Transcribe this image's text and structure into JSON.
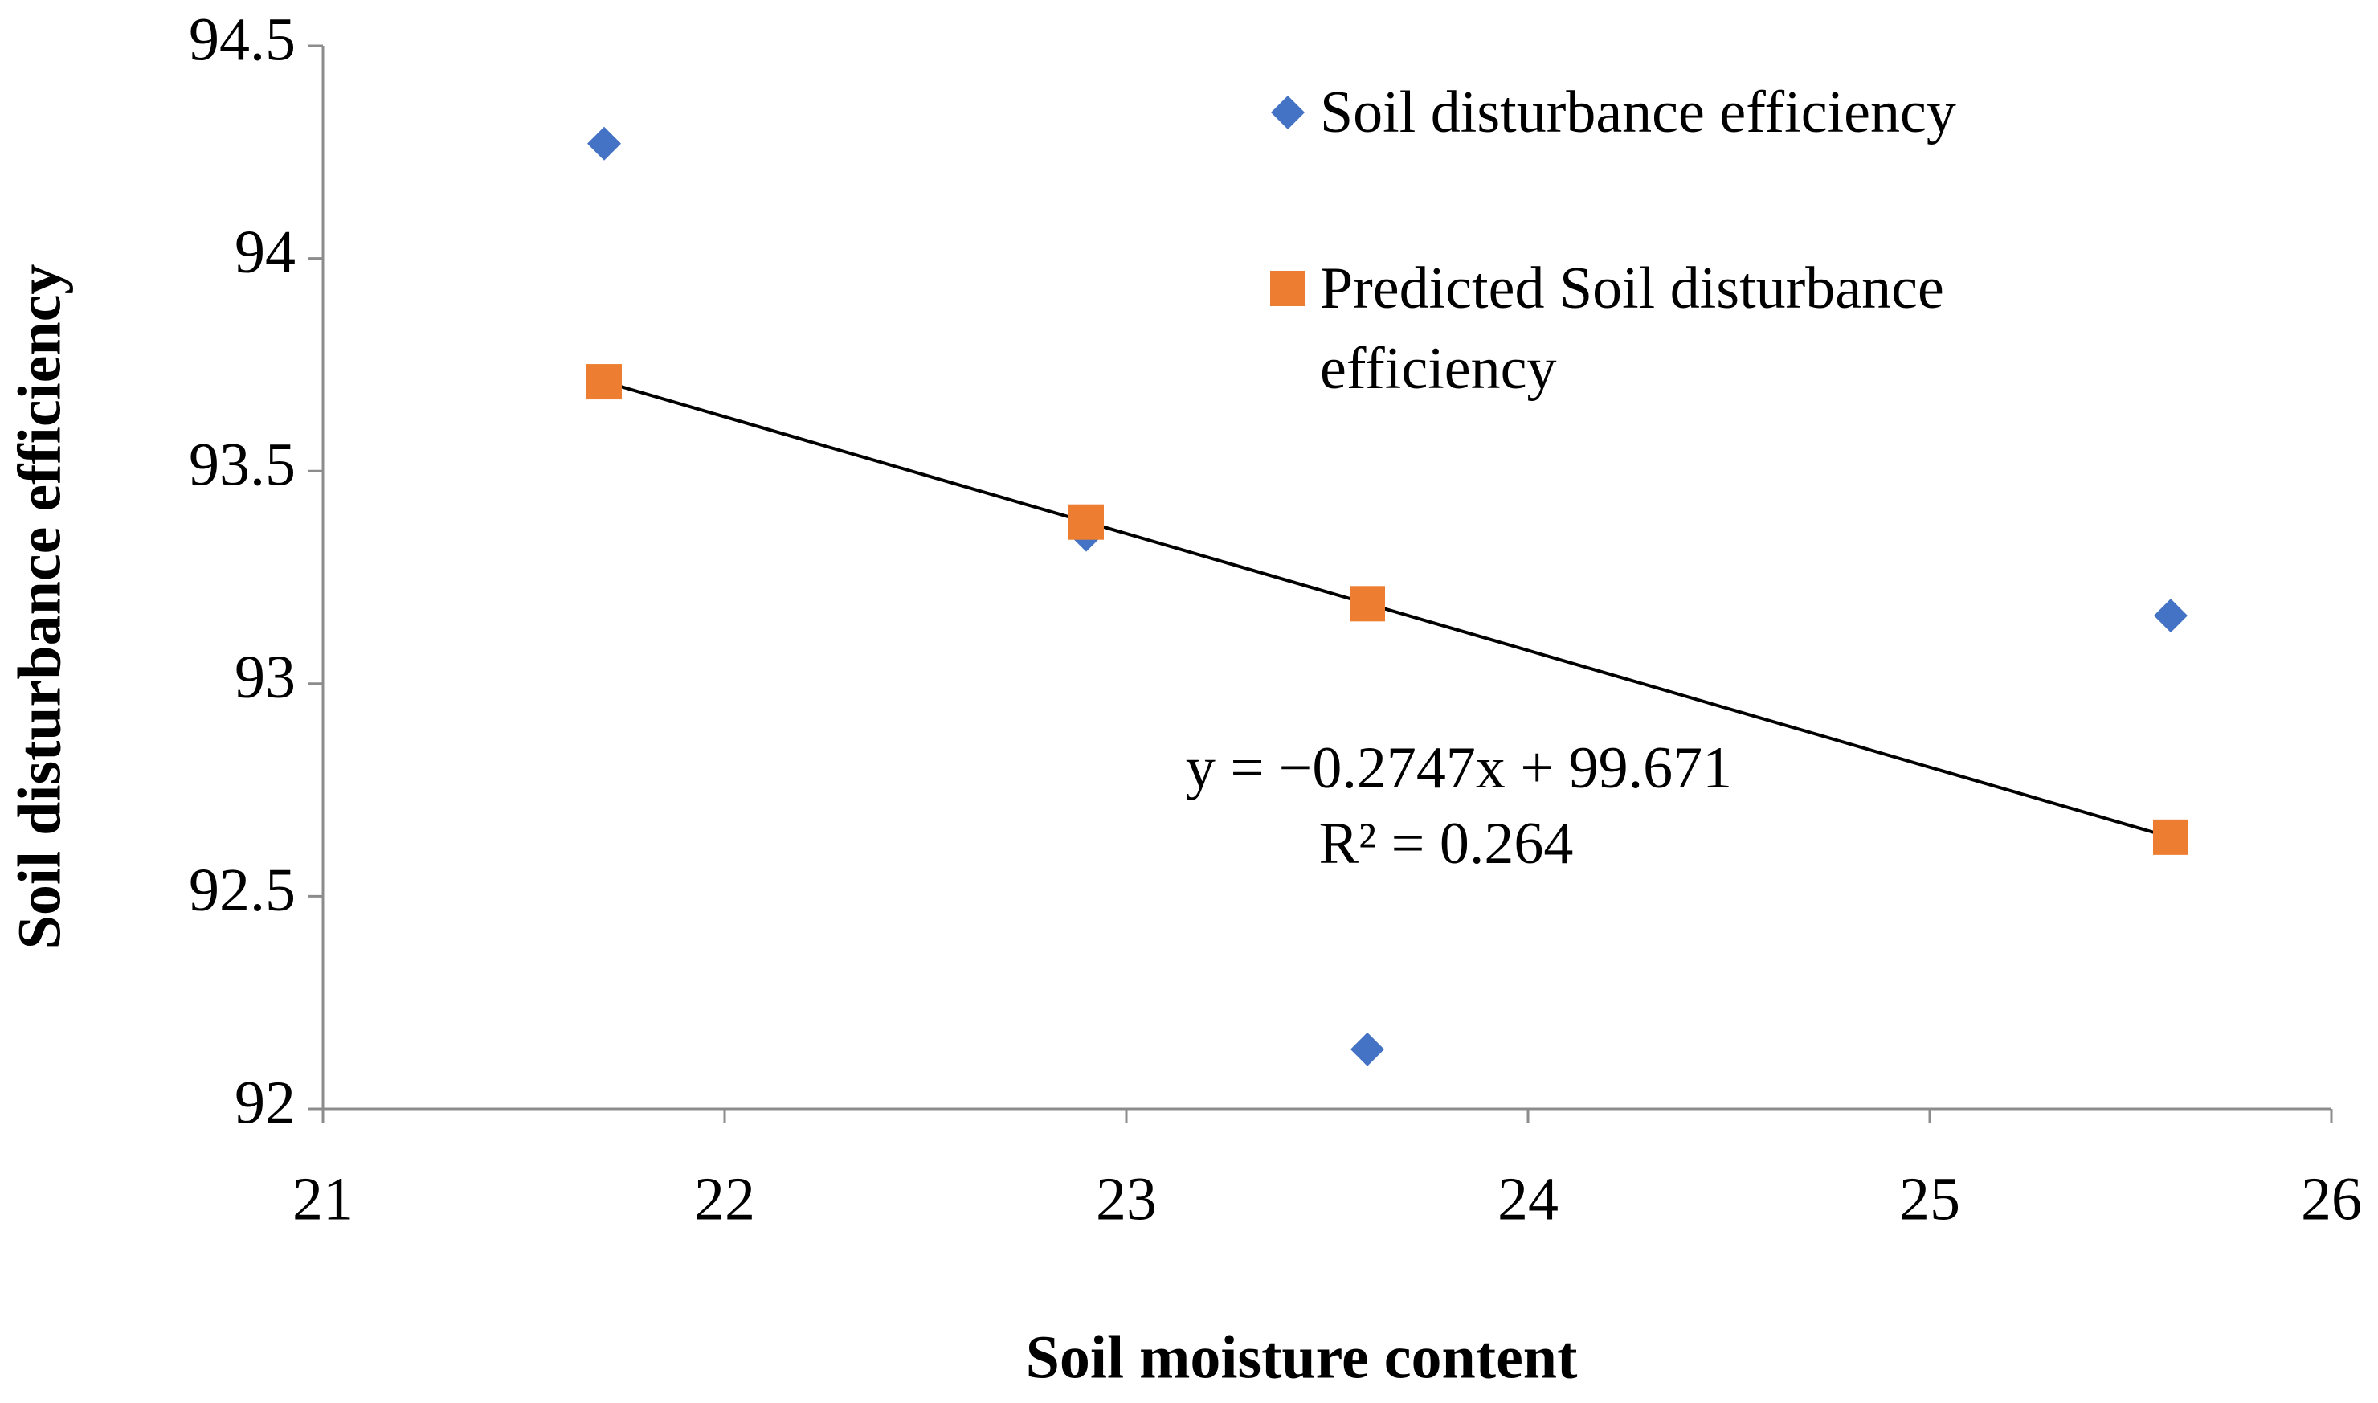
{
  "chart_data": {
    "type": "scatter",
    "xlabel": "Soil moisture content",
    "ylabel": "Soil disturbance efficiency",
    "xlim": [
      21,
      26
    ],
    "xticks": [
      21,
      22,
      23,
      24,
      25,
      26
    ],
    "ylim": [
      92,
      94.5
    ],
    "yticks": [
      92,
      92.5,
      93,
      93.5,
      94,
      94.5
    ],
    "grid": false,
    "legend": "upper right",
    "series": [
      {
        "name": "Soil disturbance efficiency",
        "color": "#4472c4",
        "marker": "diamond",
        "x": [
          21.7,
          22.9,
          23.6,
          25.6
        ],
        "values": [
          94.27,
          93.35,
          92.14,
          93.16
        ]
      },
      {
        "name": "Predicted Soil disturbance efficiency",
        "color": "#ed7d31",
        "marker": "square",
        "x": [
          21.7,
          22.9,
          23.6,
          25.6
        ],
        "values": [
          93.71,
          93.38,
          93.188,
          92.639
        ]
      }
    ],
    "trendline": {
      "slope": -0.2747,
      "intercept": 99.671,
      "color": "#000000",
      "equation": "y = −0.2747x + 99.671",
      "r2_label": "R² = 0.264"
    }
  }
}
